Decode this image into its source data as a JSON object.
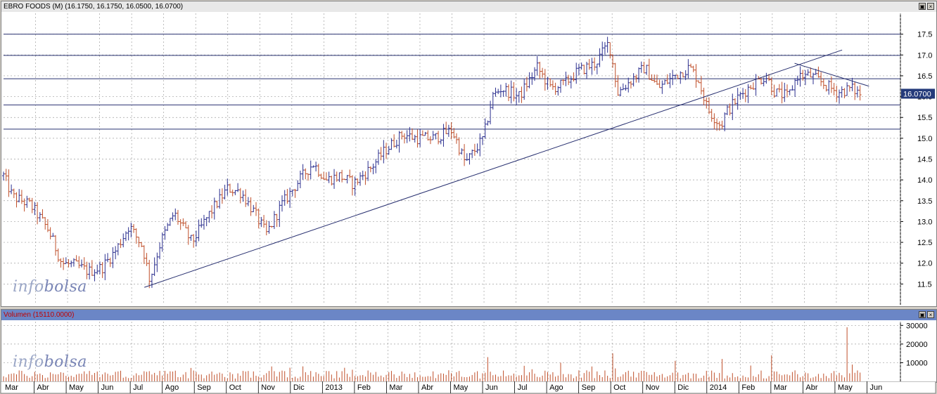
{
  "chart_data": [
    {
      "type": "line",
      "title": "EBRO FOODS (M) (16.1750, 16.1750, 16.0500, 16.0700)",
      "current_price_label": "16.0700",
      "yticks": [
        "11.5",
        "12.0",
        "12.5",
        "13.0",
        "13.5",
        "14.0",
        "14.5",
        "15.0",
        "15.5",
        "16.0",
        "16.5",
        "17.0",
        "17.5"
      ],
      "ylim": [
        11.0,
        18.0
      ],
      "horizontal_lines": [
        17.5,
        16.99,
        16.43,
        15.8,
        15.22
      ],
      "trendlines": [
        {
          "from": [
            0.157,
            11.42
          ],
          "to": [
            0.935,
            17.12
          ]
        },
        {
          "from": [
            0.882,
            16.8
          ],
          "to": [
            0.965,
            16.25
          ]
        }
      ],
      "x_months": [
        "Mar",
        "Abr",
        "May",
        "Jun",
        "Jul",
        "Ago",
        "Sep",
        "Oct",
        "Nov",
        "Dic",
        "2013",
        "Feb",
        "Mar",
        "Abr",
        "May",
        "Jun",
        "Jul",
        "Ago",
        "Sep",
        "Oct",
        "Nov",
        "Dic",
        "2014",
        "Feb",
        "Mar",
        "Abr",
        "May",
        "Jun"
      ],
      "price_anchors": [
        [
          0.0,
          14.1
        ],
        [
          0.01,
          13.6
        ],
        [
          0.03,
          13.4
        ],
        [
          0.05,
          12.8
        ],
        [
          0.065,
          12.0
        ],
        [
          0.08,
          11.95
        ],
        [
          0.095,
          11.8
        ],
        [
          0.11,
          11.9
        ],
        [
          0.125,
          12.3
        ],
        [
          0.14,
          12.9
        ],
        [
          0.155,
          12.4
        ],
        [
          0.163,
          11.6
        ],
        [
          0.175,
          12.5
        ],
        [
          0.19,
          13.2
        ],
        [
          0.21,
          12.5
        ],
        [
          0.23,
          13.2
        ],
        [
          0.25,
          13.8
        ],
        [
          0.265,
          13.7
        ],
        [
          0.28,
          13.2
        ],
        [
          0.293,
          12.7
        ],
        [
          0.31,
          13.4
        ],
        [
          0.33,
          14.0
        ],
        [
          0.345,
          14.4
        ],
        [
          0.36,
          14.0
        ],
        [
          0.375,
          14.1
        ],
        [
          0.39,
          13.9
        ],
        [
          0.41,
          14.3
        ],
        [
          0.425,
          14.7
        ],
        [
          0.445,
          15.1
        ],
        [
          0.46,
          15.0
        ],
        [
          0.48,
          15.0
        ],
        [
          0.5,
          15.2
        ],
        [
          0.515,
          14.4
        ],
        [
          0.535,
          15.0
        ],
        [
          0.545,
          16.0
        ],
        [
          0.555,
          16.2
        ],
        [
          0.575,
          16.0
        ],
        [
          0.595,
          16.7
        ],
        [
          0.61,
          16.2
        ],
        [
          0.625,
          16.3
        ],
        [
          0.64,
          16.6
        ],
        [
          0.66,
          16.8
        ],
        [
          0.675,
          17.3
        ],
        [
          0.685,
          16.1
        ],
        [
          0.7,
          16.4
        ],
        [
          0.715,
          16.7
        ],
        [
          0.73,
          16.2
        ],
        [
          0.748,
          16.5
        ],
        [
          0.765,
          16.7
        ],
        [
          0.775,
          16.4
        ],
        [
          0.785,
          15.7
        ],
        [
          0.8,
          15.3
        ],
        [
          0.805,
          15.6
        ],
        [
          0.82,
          16.0
        ],
        [
          0.835,
          16.3
        ],
        [
          0.85,
          16.5
        ],
        [
          0.86,
          16.1
        ],
        [
          0.875,
          16.0
        ],
        [
          0.885,
          16.5
        ],
        [
          0.9,
          16.5
        ],
        [
          0.915,
          16.3
        ],
        [
          0.93,
          16.1
        ],
        [
          0.945,
          16.2
        ],
        [
          0.955,
          16.07
        ]
      ]
    },
    {
      "type": "bar",
      "title": "Volumen (15110.0000)",
      "yticks": [
        "10000",
        "20000",
        "30000"
      ],
      "ylim": [
        0,
        32000
      ],
      "spikes": [
        [
          0.3,
          8000
        ],
        [
          0.54,
          13000
        ],
        [
          0.62,
          10000
        ],
        [
          0.68,
          15000
        ],
        [
          0.75,
          11000
        ],
        [
          0.8,
          12000
        ],
        [
          0.855,
          14000
        ],
        [
          0.94,
          29000
        ],
        [
          0.945,
          9000
        ]
      ]
    }
  ],
  "watermark": [
    "info",
    "bolsa"
  ],
  "window_buttons": [
    "▣",
    "×"
  ],
  "colors": {
    "up": "#2b2f8f",
    "down": "#c0502b",
    "hline": "#283070",
    "grid": "#a0a0a0",
    "pricebox": "#243a7a"
  }
}
